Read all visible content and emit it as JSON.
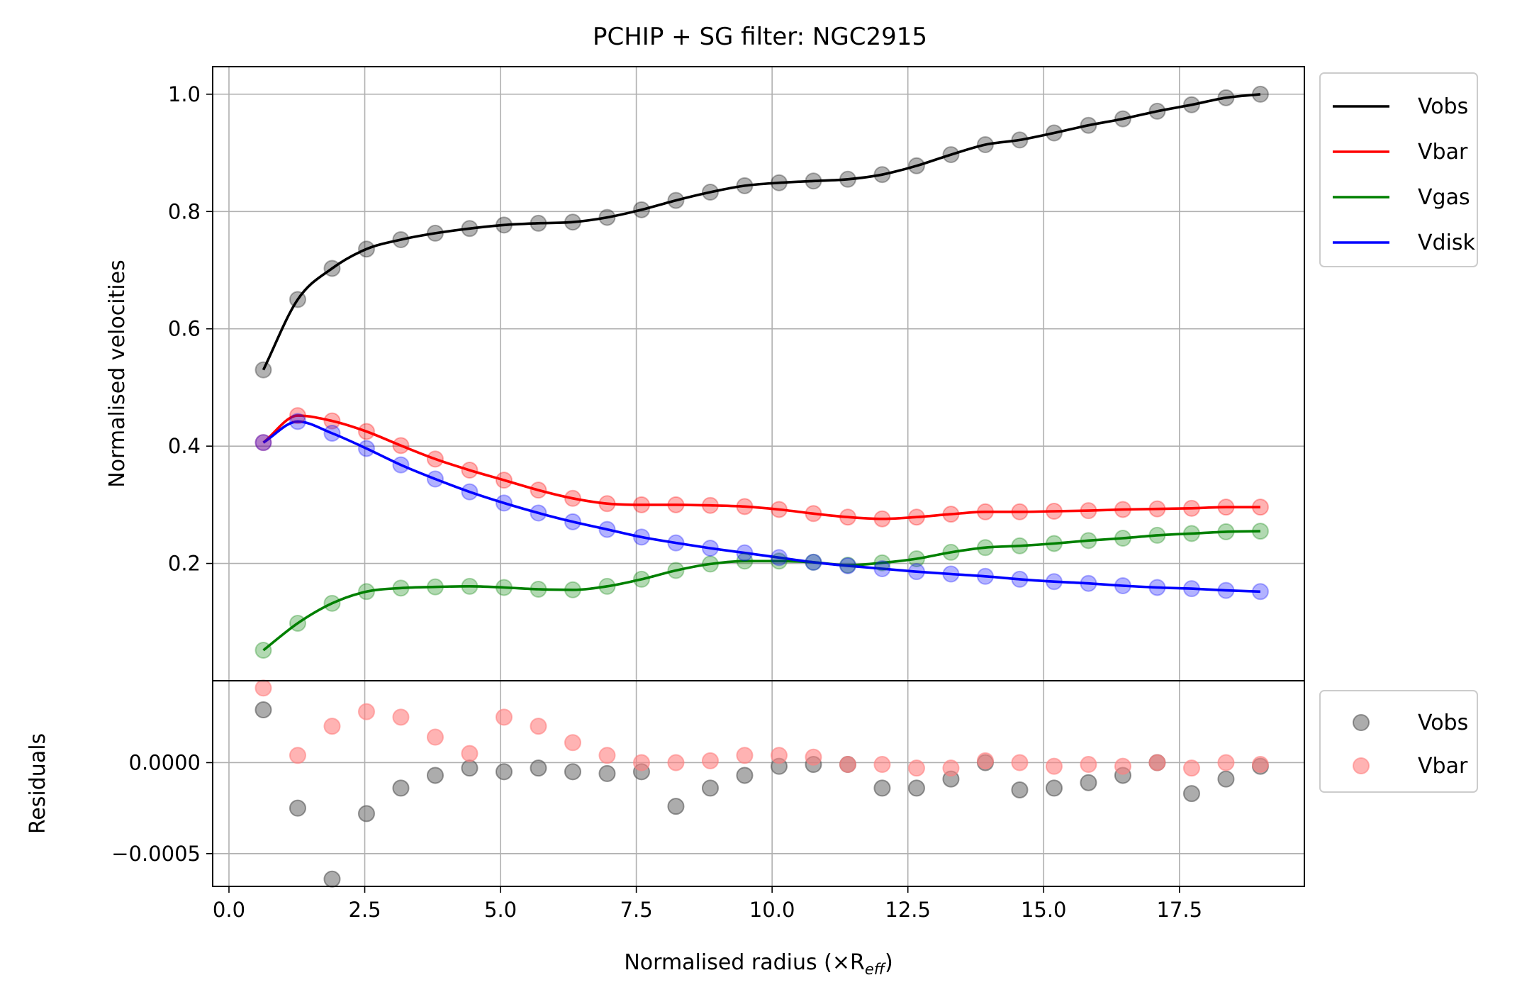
{
  "chart_data": [
    {
      "type": "line",
      "title": "PCHIP + SG filter: NGC2915",
      "xlabel": "",
      "ylabel": "Normalised velocities",
      "xlim": [
        -0.3,
        19.8
      ],
      "ylim": [
        0.0,
        1.047
      ],
      "xticks": [
        0.0,
        2.5,
        5.0,
        7.5,
        10.0,
        12.5,
        15.0,
        17.5
      ],
      "xtick_labels": [
        "0.0",
        "2.5",
        "5.0",
        "7.5",
        "10.0",
        "12.5",
        "15.0",
        "17.5"
      ],
      "yticks": [
        0.2,
        0.4,
        0.6,
        0.8,
        1.0
      ],
      "ytick_labels": [
        "0.2",
        "0.4",
        "0.6",
        "0.8",
        "1.0"
      ],
      "grid": true,
      "legend": "outside upper right",
      "x": [
        0.633,
        1.266,
        1.899,
        2.532,
        3.165,
        3.798,
        4.431,
        5.064,
        5.697,
        6.33,
        6.963,
        7.596,
        8.229,
        8.862,
        9.495,
        10.128,
        10.761,
        11.394,
        12.027,
        12.66,
        13.293,
        13.926,
        14.559,
        15.192,
        15.825,
        16.458,
        17.091,
        17.724,
        18.357,
        18.99
      ],
      "series": [
        {
          "name": "Vobs",
          "color": "#000000",
          "values": [
            0.53,
            0.65,
            0.703,
            0.736,
            0.752,
            0.763,
            0.771,
            0.777,
            0.78,
            0.782,
            0.79,
            0.803,
            0.819,
            0.833,
            0.844,
            0.849,
            0.852,
            0.855,
            0.863,
            0.878,
            0.897,
            0.914,
            0.922,
            0.934,
            0.947,
            0.958,
            0.971,
            0.982,
            0.994,
            1.0
          ]
        },
        {
          "name": "Vbar",
          "color": "#ff0000",
          "values": [
            0.406,
            0.452,
            0.443,
            0.425,
            0.401,
            0.378,
            0.359,
            0.342,
            0.325,
            0.311,
            0.302,
            0.3,
            0.3,
            0.299,
            0.297,
            0.292,
            0.285,
            0.279,
            0.276,
            0.279,
            0.284,
            0.288,
            0.288,
            0.289,
            0.29,
            0.292,
            0.293,
            0.294,
            0.296,
            0.296
          ]
        },
        {
          "name": "Vgas",
          "color": "#008000",
          "values": [
            0.052,
            0.098,
            0.132,
            0.152,
            0.158,
            0.16,
            0.161,
            0.159,
            0.156,
            0.155,
            0.161,
            0.173,
            0.188,
            0.199,
            0.204,
            0.204,
            0.202,
            0.197,
            0.201,
            0.208,
            0.219,
            0.227,
            0.23,
            0.234,
            0.239,
            0.243,
            0.248,
            0.251,
            0.254,
            0.255
          ]
        },
        {
          "name": "Vdisk",
          "color": "#0000ff",
          "values": [
            0.406,
            0.442,
            0.422,
            0.396,
            0.368,
            0.344,
            0.322,
            0.303,
            0.286,
            0.271,
            0.258,
            0.245,
            0.235,
            0.226,
            0.218,
            0.21,
            0.202,
            0.196,
            0.191,
            0.186,
            0.182,
            0.178,
            0.173,
            0.169,
            0.166,
            0.162,
            0.159,
            0.157,
            0.154,
            0.152
          ]
        }
      ]
    },
    {
      "type": "scatter",
      "title": "",
      "xlabel": "Normalised radius (×R",
      "xlabel_sub": "eff",
      "xlabel_end": ")",
      "ylabel": "Residuals",
      "xlim": [
        -0.3,
        19.8
      ],
      "ylim": [
        -0.00068,
        0.00045
      ],
      "yticks": [
        0.0,
        -0.0005
      ],
      "ytick_labels": [
        "0.0000",
        "−0.0005"
      ],
      "grid": true,
      "legend": "outside upper right",
      "x": [
        0.633,
        1.266,
        1.899,
        2.532,
        3.165,
        3.798,
        4.431,
        5.064,
        5.697,
        6.33,
        6.963,
        7.596,
        8.229,
        8.862,
        9.495,
        10.128,
        10.761,
        11.394,
        12.027,
        12.66,
        13.293,
        13.926,
        14.559,
        15.192,
        15.825,
        16.458,
        17.091,
        17.724,
        18.357,
        18.99
      ],
      "series": [
        {
          "name": "Vobs",
          "color": "#808080",
          "values": [
            0.00029,
            -0.00025,
            -0.00064,
            -0.00028,
            -0.00014,
            -7e-05,
            -3e-05,
            -5e-05,
            -3e-05,
            -5e-05,
            -6e-05,
            -5e-05,
            -0.00024,
            -0.00014,
            -7e-05,
            -2e-05,
            -1e-05,
            -1e-05,
            -0.00014,
            -0.00014,
            -9e-05,
            0.0,
            -0.00015,
            -0.00014,
            -0.00011,
            -7e-05,
            0.0,
            -0.00017,
            -9e-05,
            -2e-05
          ]
        },
        {
          "name": "Vbar",
          "color": "#ff8080",
          "values": [
            0.00041,
            4e-05,
            0.0002,
            0.00028,
            0.00025,
            0.00014,
            5e-05,
            0.00025,
            0.0002,
            0.00011,
            4e-05,
            0.0,
            0.0,
            1e-05,
            4e-05,
            4e-05,
            3e-05,
            -1e-05,
            -1e-05,
            -3e-05,
            -3e-05,
            1e-05,
            0.0,
            -2e-05,
            -1e-05,
            -2e-05,
            0.0,
            -3e-05,
            0.0,
            -1e-05
          ]
        }
      ]
    }
  ]
}
